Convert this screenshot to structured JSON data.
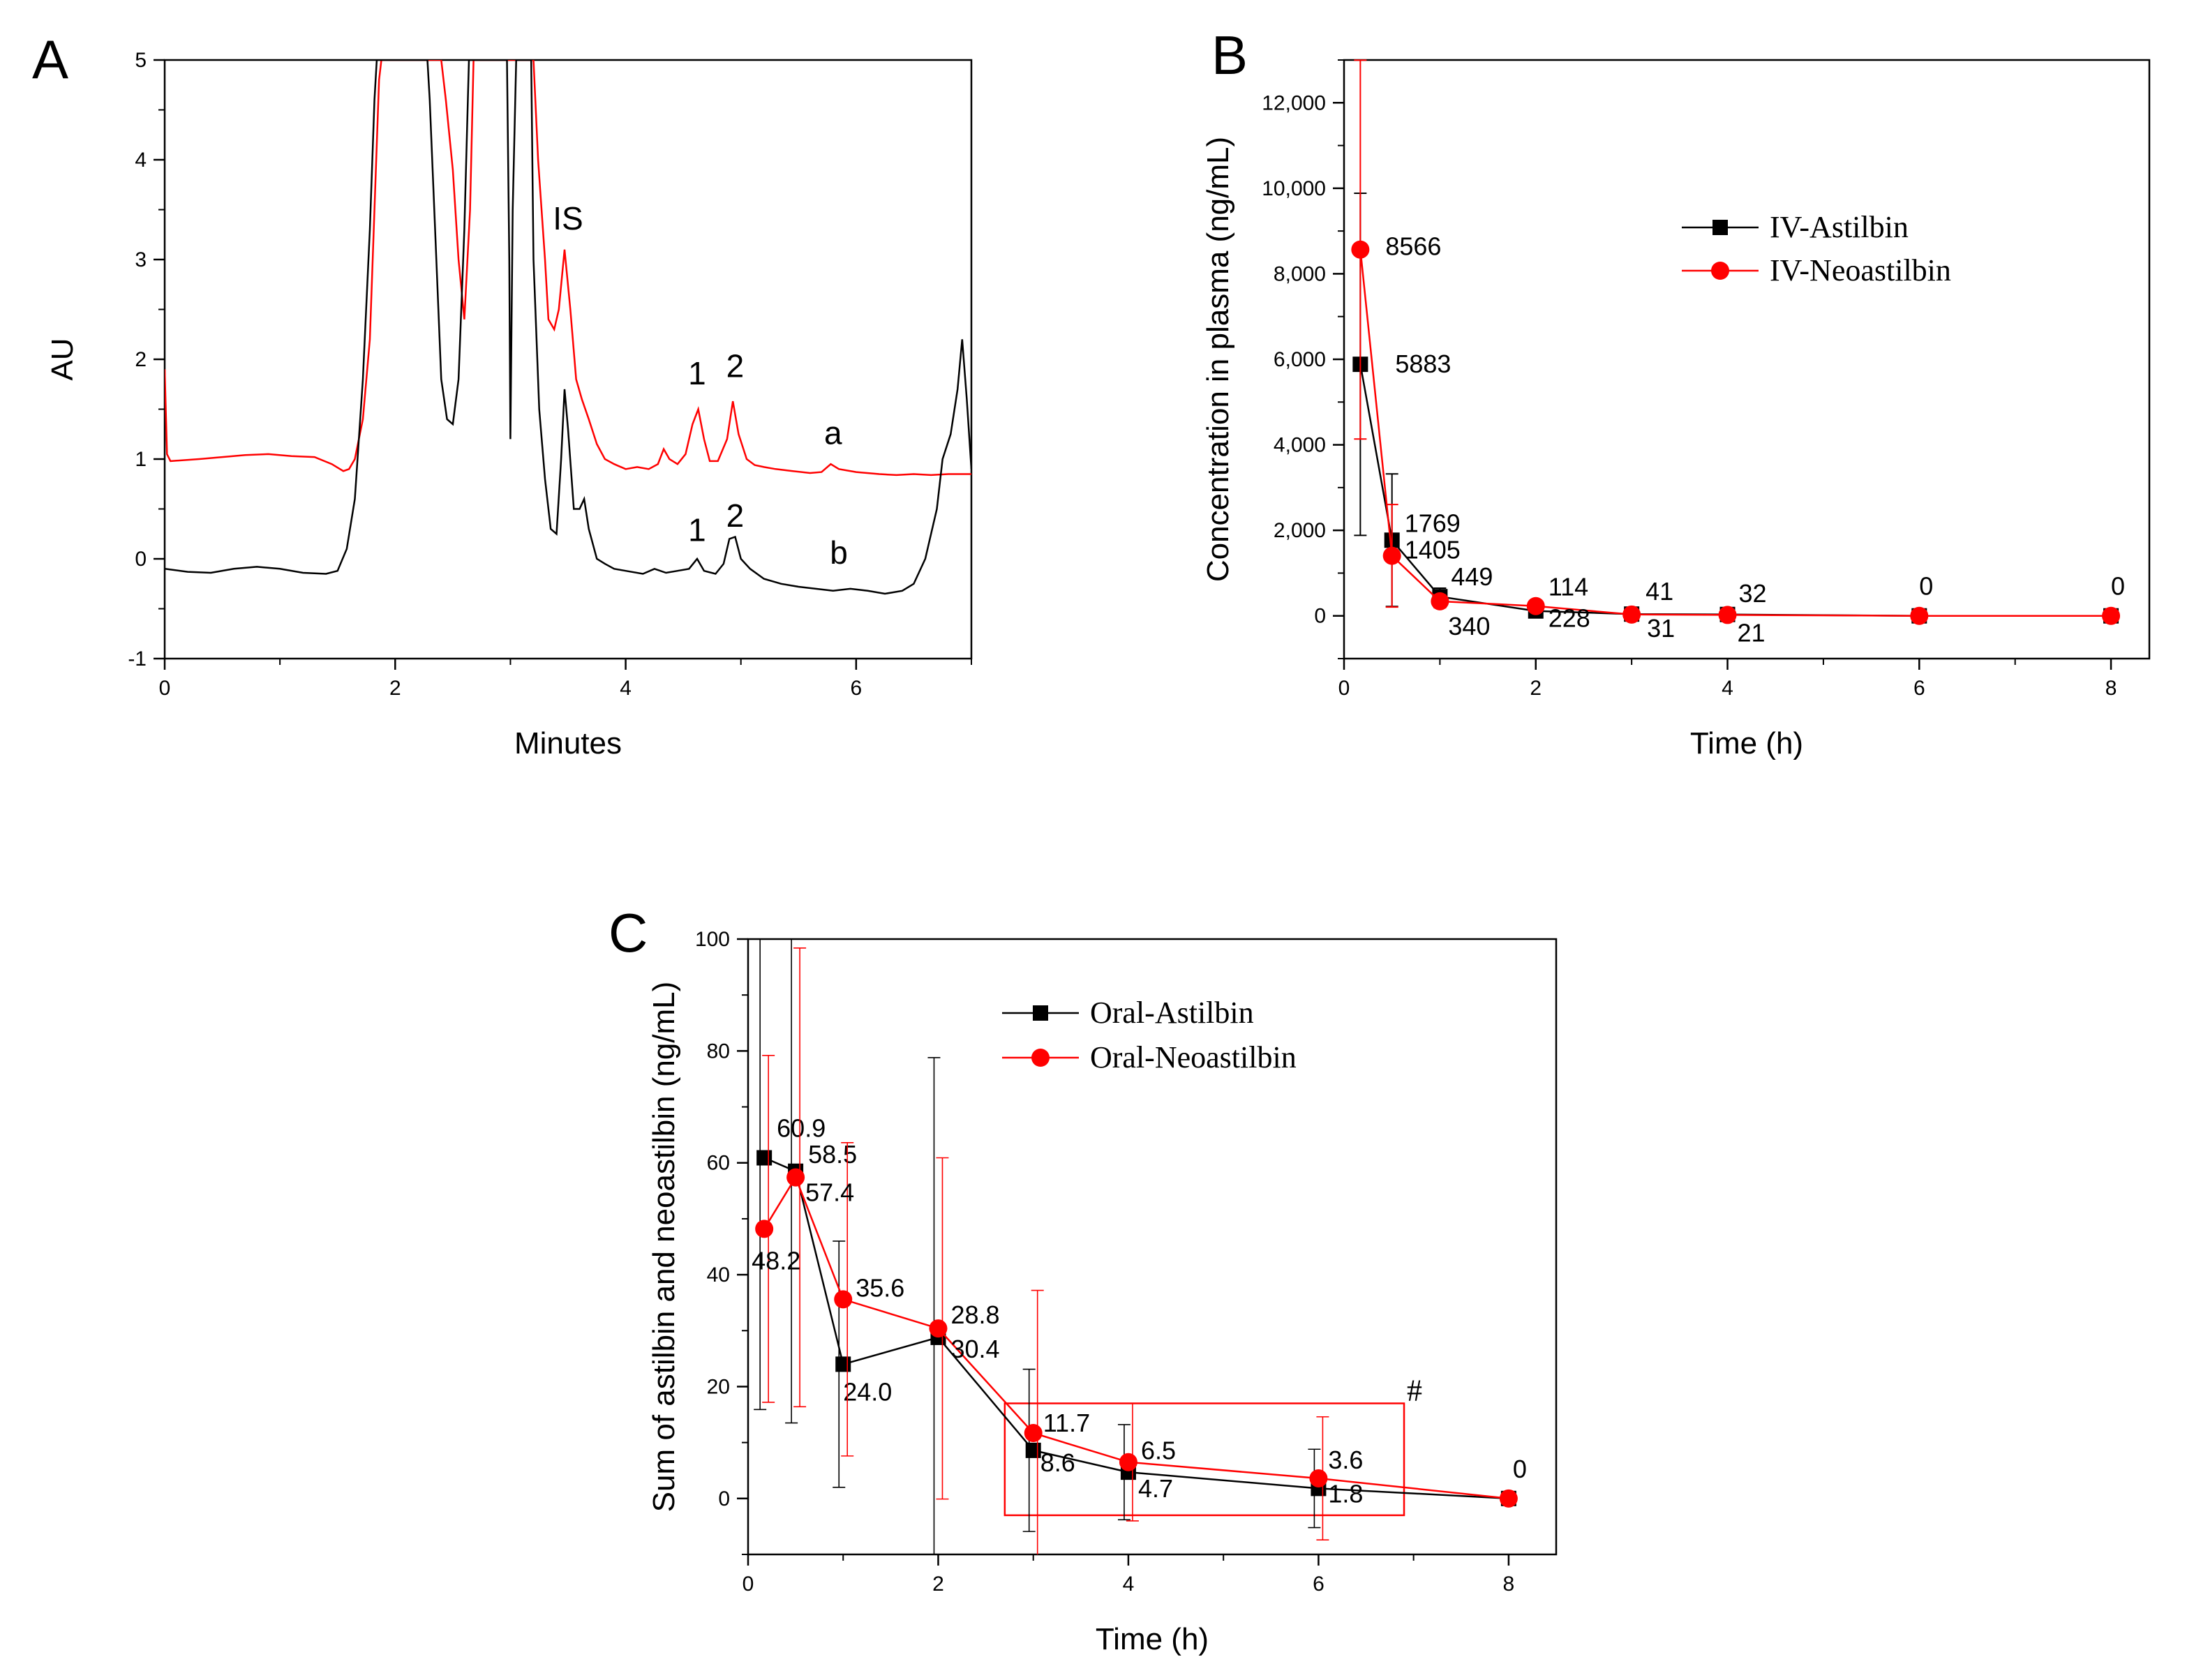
{
  "colors": {
    "black": "#000000",
    "red": "#ff0000"
  },
  "chart_data": [
    {
      "id": "A",
      "type": "line",
      "panel_label": "A",
      "title": "",
      "xlabel": "Minutes",
      "ylabel": "AU",
      "xlim": [
        0,
        7
      ],
      "ylim": [
        -1,
        5
      ],
      "xticks": [
        0,
        2,
        4,
        6
      ],
      "yticks": [
        -1,
        0,
        1,
        2,
        3,
        4,
        5
      ],
      "peak_labels": [
        {
          "text": "IS",
          "x": 3.5,
          "y": 3.3
        },
        {
          "text": "1",
          "x": 4.62,
          "y": 1.75
        },
        {
          "text": "2",
          "x": 4.95,
          "y": 1.82
        },
        {
          "text": "a",
          "x": 5.8,
          "y": 1.15
        },
        {
          "text": "1",
          "x": 4.62,
          "y": 0.18
        },
        {
          "text": "2",
          "x": 4.95,
          "y": 0.32
        },
        {
          "text": "b",
          "x": 5.85,
          "y": -0.05
        }
      ],
      "series": [
        {
          "name": "a",
          "color": "#ff0000",
          "points": [
            [
              0,
              1.9
            ],
            [
              0.02,
              1.05
            ],
            [
              0.05,
              0.98
            ],
            [
              0.3,
              1.0
            ],
            [
              0.5,
              1.02
            ],
            [
              0.7,
              1.04
            ],
            [
              0.9,
              1.05
            ],
            [
              1.1,
              1.03
            ],
            [
              1.3,
              1.02
            ],
            [
              1.45,
              0.95
            ],
            [
              1.55,
              0.88
            ],
            [
              1.6,
              0.9
            ],
            [
              1.65,
              1.0
            ],
            [
              1.72,
              1.4
            ],
            [
              1.78,
              2.2
            ],
            [
              1.82,
              3.5
            ],
            [
              1.86,
              4.8
            ],
            [
              1.88,
              5.0
            ],
            [
              2.4,
              5.0
            ],
            [
              2.44,
              4.6
            ],
            [
              2.5,
              3.9
            ],
            [
              2.55,
              3.0
            ],
            [
              2.6,
              2.4
            ],
            [
              2.65,
              3.5
            ],
            [
              2.68,
              5.0
            ],
            [
              3.2,
              5.0
            ],
            [
              3.24,
              4.0
            ],
            [
              3.3,
              3.0
            ],
            [
              3.33,
              2.4
            ],
            [
              3.38,
              2.3
            ],
            [
              3.42,
              2.5
            ],
            [
              3.47,
              3.1
            ],
            [
              3.52,
              2.5
            ],
            [
              3.57,
              1.8
            ],
            [
              3.62,
              1.6
            ],
            [
              3.68,
              1.4
            ],
            [
              3.75,
              1.15
            ],
            [
              3.82,
              1.0
            ],
            [
              3.9,
              0.95
            ],
            [
              4.0,
              0.9
            ],
            [
              4.1,
              0.92
            ],
            [
              4.2,
              0.9
            ],
            [
              4.28,
              0.95
            ],
            [
              4.33,
              1.1
            ],
            [
              4.38,
              1.0
            ],
            [
              4.45,
              0.95
            ],
            [
              4.52,
              1.05
            ],
            [
              4.58,
              1.35
            ],
            [
              4.63,
              1.5
            ],
            [
              4.68,
              1.2
            ],
            [
              4.73,
              0.98
            ],
            [
              4.8,
              0.98
            ],
            [
              4.88,
              1.2
            ],
            [
              4.93,
              1.58
            ],
            [
              4.98,
              1.25
            ],
            [
              5.05,
              1.0
            ],
            [
              5.12,
              0.94
            ],
            [
              5.2,
              0.92
            ],
            [
              5.3,
              0.9
            ],
            [
              5.45,
              0.88
            ],
            [
              5.6,
              0.86
            ],
            [
              5.7,
              0.87
            ],
            [
              5.78,
              0.95
            ],
            [
              5.85,
              0.9
            ],
            [
              6.0,
              0.87
            ],
            [
              6.2,
              0.85
            ],
            [
              6.35,
              0.84
            ],
            [
              6.5,
              0.85
            ],
            [
              6.65,
              0.84
            ],
            [
              6.8,
              0.85
            ],
            [
              7.0,
              0.85
            ]
          ]
        },
        {
          "name": "b",
          "color": "#000000",
          "points": [
            [
              0,
              -0.1
            ],
            [
              0.2,
              -0.13
            ],
            [
              0.4,
              -0.14
            ],
            [
              0.6,
              -0.1
            ],
            [
              0.8,
              -0.08
            ],
            [
              1.0,
              -0.1
            ],
            [
              1.2,
              -0.14
            ],
            [
              1.4,
              -0.15
            ],
            [
              1.5,
              -0.12
            ],
            [
              1.58,
              0.1
            ],
            [
              1.65,
              0.6
            ],
            [
              1.72,
              1.8
            ],
            [
              1.78,
              3.3
            ],
            [
              1.82,
              4.6
            ],
            [
              1.84,
              5.0
            ],
            [
              2.28,
              5.0
            ],
            [
              2.3,
              4.6
            ],
            [
              2.35,
              3.2
            ],
            [
              2.4,
              1.8
            ],
            [
              2.45,
              1.4
            ],
            [
              2.5,
              1.35
            ],
            [
              2.55,
              1.8
            ],
            [
              2.6,
              3.3
            ],
            [
              2.64,
              5.0
            ],
            [
              2.97,
              5.0
            ],
            [
              2.99,
              3.0
            ],
            [
              3.0,
              1.2
            ],
            [
              3.02,
              3.5
            ],
            [
              3.05,
              5.0
            ],
            [
              3.18,
              5.0
            ],
            [
              3.2,
              3.0
            ],
            [
              3.25,
              1.5
            ],
            [
              3.3,
              0.8
            ],
            [
              3.35,
              0.3
            ],
            [
              3.4,
              0.25
            ],
            [
              3.44,
              1.0
            ],
            [
              3.47,
              1.7
            ],
            [
              3.5,
              1.3
            ],
            [
              3.55,
              0.5
            ],
            [
              3.6,
              0.5
            ],
            [
              3.64,
              0.6
            ],
            [
              3.68,
              0.3
            ],
            [
              3.75,
              0.0
            ],
            [
              3.82,
              -0.05
            ],
            [
              3.9,
              -0.1
            ],
            [
              4.0,
              -0.12
            ],
            [
              4.15,
              -0.15
            ],
            [
              4.25,
              -0.1
            ],
            [
              4.35,
              -0.14
            ],
            [
              4.45,
              -0.12
            ],
            [
              4.55,
              -0.1
            ],
            [
              4.62,
              0.0
            ],
            [
              4.68,
              -0.12
            ],
            [
              4.78,
              -0.15
            ],
            [
              4.85,
              -0.05
            ],
            [
              4.9,
              0.2
            ],
            [
              4.95,
              0.22
            ],
            [
              5.0,
              0.0
            ],
            [
              5.08,
              -0.1
            ],
            [
              5.2,
              -0.2
            ],
            [
              5.35,
              -0.25
            ],
            [
              5.5,
              -0.28
            ],
            [
              5.65,
              -0.3
            ],
            [
              5.8,
              -0.32
            ],
            [
              5.95,
              -0.3
            ],
            [
              6.1,
              -0.32
            ],
            [
              6.25,
              -0.35
            ],
            [
              6.4,
              -0.32
            ],
            [
              6.5,
              -0.25
            ],
            [
              6.6,
              0.0
            ],
            [
              6.7,
              0.5
            ],
            [
              6.75,
              1.0
            ],
            [
              6.82,
              1.25
            ],
            [
              6.88,
              1.7
            ],
            [
              6.92,
              2.2
            ],
            [
              6.96,
              1.6
            ],
            [
              7.0,
              0.9
            ]
          ]
        }
      ]
    },
    {
      "id": "B",
      "type": "line",
      "panel_label": "B",
      "title": "",
      "xlabel": "Time (h)",
      "ylabel": "Concentration in plasma (ng/mL)",
      "xlim": [
        0,
        8.4
      ],
      "ylim": [
        -1000,
        13000
      ],
      "xticks": [
        0,
        2,
        4,
        6,
        8
      ],
      "yticks": [
        0,
        2000,
        4000,
        6000,
        8000,
        10000,
        12000
      ],
      "ytick_labels": [
        "0",
        "2,000",
        "4,000",
        "6,000",
        "8,000",
        "10,000",
        "12,000"
      ],
      "legend": {
        "position": "upper-right",
        "entries": [
          "IV-Astilbin",
          "IV-Neoastilbin"
        ]
      },
      "series": [
        {
          "name": "IV-Astilbin",
          "color": "#000000",
          "marker": "square",
          "x": [
            0.17,
            0.5,
            1,
            2,
            3,
            4,
            6,
            8
          ],
          "y": [
            5883,
            1769,
            449,
            114,
            41,
            32,
            0,
            0
          ],
          "err": [
            4000,
            1550,
            200,
            90,
            30,
            25,
            0,
            0
          ],
          "labels": [
            "5883",
            "1769",
            "449",
            "114",
            "41",
            "32",
            "0",
            "0"
          ]
        },
        {
          "name": "IV-Neoastilbin",
          "color": "#ff0000",
          "marker": "circle",
          "x": [
            0.17,
            0.5,
            1,
            2,
            3,
            4,
            6,
            8
          ],
          "y": [
            8566,
            1405,
            340,
            228,
            31,
            21,
            0,
            0
          ],
          "err": [
            4430,
            1200,
            150,
            80,
            25,
            18,
            0,
            0
          ],
          "labels": [
            "8566",
            "1405",
            "340",
            "228",
            "31",
            "21",
            "",
            ""
          ]
        }
      ]
    },
    {
      "id": "C",
      "type": "line",
      "panel_label": "C",
      "title": "",
      "xlabel": "Time (h)",
      "ylabel": "Sum of astilbin and neoastilbin (ng/mL)",
      "xlim": [
        0,
        8.5
      ],
      "ylim": [
        -10,
        100
      ],
      "xticks": [
        0,
        2,
        4,
        6,
        8
      ],
      "yticks": [
        0,
        20,
        40,
        60,
        80,
        100
      ],
      "legend": {
        "position": "upper-right",
        "entries": [
          "Oral-Astilbin",
          "Oral-Neoastilbin"
        ]
      },
      "annotation": {
        "text": "#",
        "box_x": [
          2.7,
          6.9
        ],
        "box_y": [
          -3,
          17
        ]
      },
      "series": [
        {
          "name": "Oral-Astilbin",
          "color": "#000000",
          "marker": "square",
          "x": [
            0.17,
            0.5,
            1,
            2,
            3,
            4,
            6,
            8
          ],
          "y": [
            60.9,
            58.5,
            24.0,
            28.8,
            8.6,
            4.7,
            1.8,
            0
          ],
          "err": [
            45,
            45,
            22,
            50,
            14.5,
            8.5,
            7,
            0
          ],
          "labels": [
            "60.9",
            "58.5",
            "24.0",
            "28.8",
            "8.6",
            "4.7",
            "1.8",
            "0"
          ]
        },
        {
          "name": "Oral-Neoastilbin",
          "color": "#ff0000",
          "marker": "circle",
          "x": [
            0.17,
            0.5,
            1,
            2,
            3,
            4,
            6,
            8
          ],
          "y": [
            48.2,
            57.4,
            35.6,
            30.4,
            11.7,
            6.5,
            3.6,
            0
          ],
          "err": [
            31,
            41,
            28,
            30.5,
            25.5,
            10.5,
            11,
            0
          ],
          "labels": [
            "48.2",
            "57.4",
            "35.6",
            "30.4",
            "11.7",
            "6.5",
            "3.6",
            ""
          ]
        }
      ]
    }
  ]
}
